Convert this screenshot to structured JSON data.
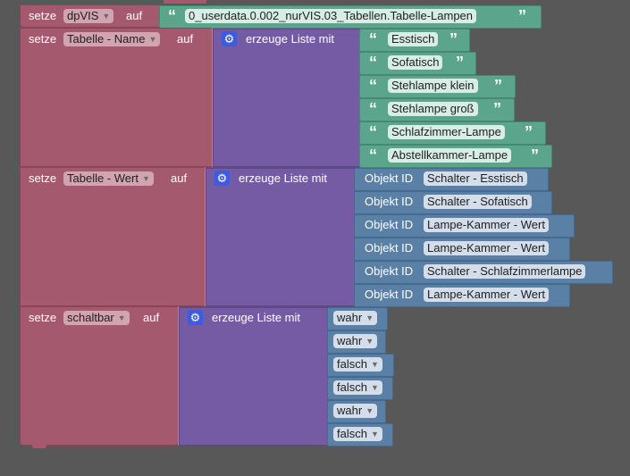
{
  "blocks": {
    "setze_label": "setze",
    "auf_label": "auf",
    "create_list_label": "erzeuge Liste mit",
    "object_id_label": "Objekt ID",
    "gear_icon": "gear-icon",
    "dpvis": {
      "variable": "dpVIS",
      "value": "0_userdata.0.002_nurVIS.03_Tabellen.Tabelle-Lampen"
    },
    "tabelle_name": {
      "variable": "Tabelle - Name",
      "items": [
        "Esstisch",
        "Sofatisch",
        "Stehlampe klein",
        "Stehlampe groß",
        "Schlafzimmer-Lampe",
        "Abstellkammer-Lampe"
      ]
    },
    "tabelle_wert": {
      "variable": "Tabelle - Wert",
      "items": [
        "Schalter - Esstisch",
        "Schalter - Sofatisch",
        "Lampe-Kammer - Wert",
        "Lampe-Kammer - Wert",
        "Schalter - Schlafzimmerlampe",
        "Lampe-Kammer - Wert"
      ]
    },
    "schaltbar": {
      "variable": "schaltbar",
      "items": [
        "wahr",
        "wahr",
        "falsch",
        "falsch",
        "wahr",
        "falsch"
      ]
    }
  },
  "colors": {
    "workspace": "#585858",
    "variables": "#A5596F",
    "lists": "#745BA4",
    "text": "#5BA58C",
    "logic": "#5B80A5"
  }
}
